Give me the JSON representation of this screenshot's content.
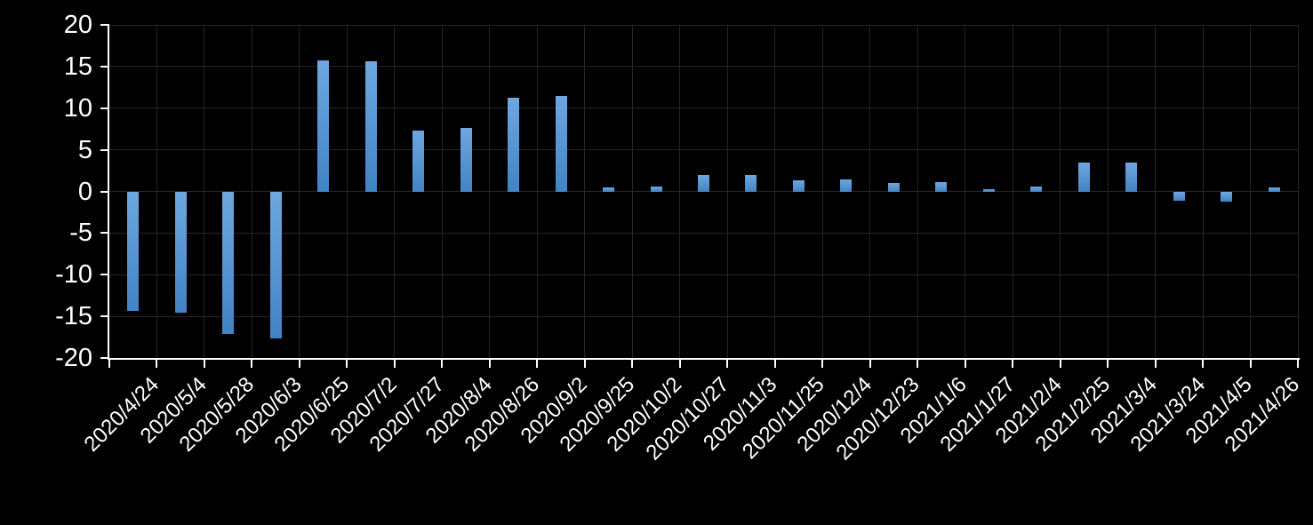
{
  "chart_data": {
    "type": "bar",
    "title": "",
    "xlabel": "",
    "ylabel": "",
    "categories": [
      "2020/4/24",
      "2020/5/4",
      "2020/5/28",
      "2020/6/3",
      "2020/6/25",
      "2020/7/2",
      "2020/7/27",
      "2020/8/4",
      "2020/8/26",
      "2020/9/2",
      "2020/9/25",
      "2020/10/2",
      "2020/10/27",
      "2020/11/3",
      "2020/11/25",
      "2020/12/4",
      "2020/12/23",
      "2021/1/6",
      "2021/1/27",
      "2021/2/4",
      "2021/2/25",
      "2021/3/4",
      "2021/3/24",
      "2021/4/5",
      "2021/4/26"
    ],
    "values": [
      -14.3,
      -14.6,
      -17.1,
      -17.7,
      15.7,
      15.6,
      7.3,
      7.6,
      11.3,
      11.5,
      0.5,
      0.6,
      2.0,
      2.0,
      1.3,
      1.4,
      1.0,
      1.1,
      0.3,
      0.6,
      3.5,
      3.5,
      -1.1,
      -1.2,
      0.5
    ],
    "ylim": [
      -20,
      20
    ],
    "yticks": [
      20,
      15,
      10,
      5,
      0,
      -5,
      -10,
      -15,
      -20
    ],
    "grid": true,
    "legend_position": "none",
    "x_label_rotation_deg": -45,
    "colors": {
      "background": "#000000",
      "bar_gradient_top": "#6FA7DF",
      "bar_gradient_bottom": "#4183C4",
      "gridline": "#262626",
      "axis": "#FFFFFF",
      "label_text": "#FFFFFF"
    }
  }
}
